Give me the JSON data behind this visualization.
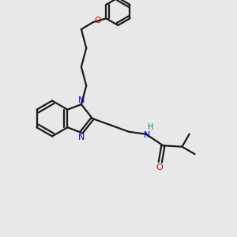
{
  "bg_color": "#e8e8e8",
  "bond_color": "#1a1a1a",
  "N_color": "#0000cc",
  "O_color": "#cc0000",
  "NH_color": "#008080",
  "line_width": 1.6,
  "figsize": [
    3.0,
    3.0
  ],
  "dpi": 100,
  "xlim": [
    0,
    10
  ],
  "ylim": [
    0,
    10
  ]
}
